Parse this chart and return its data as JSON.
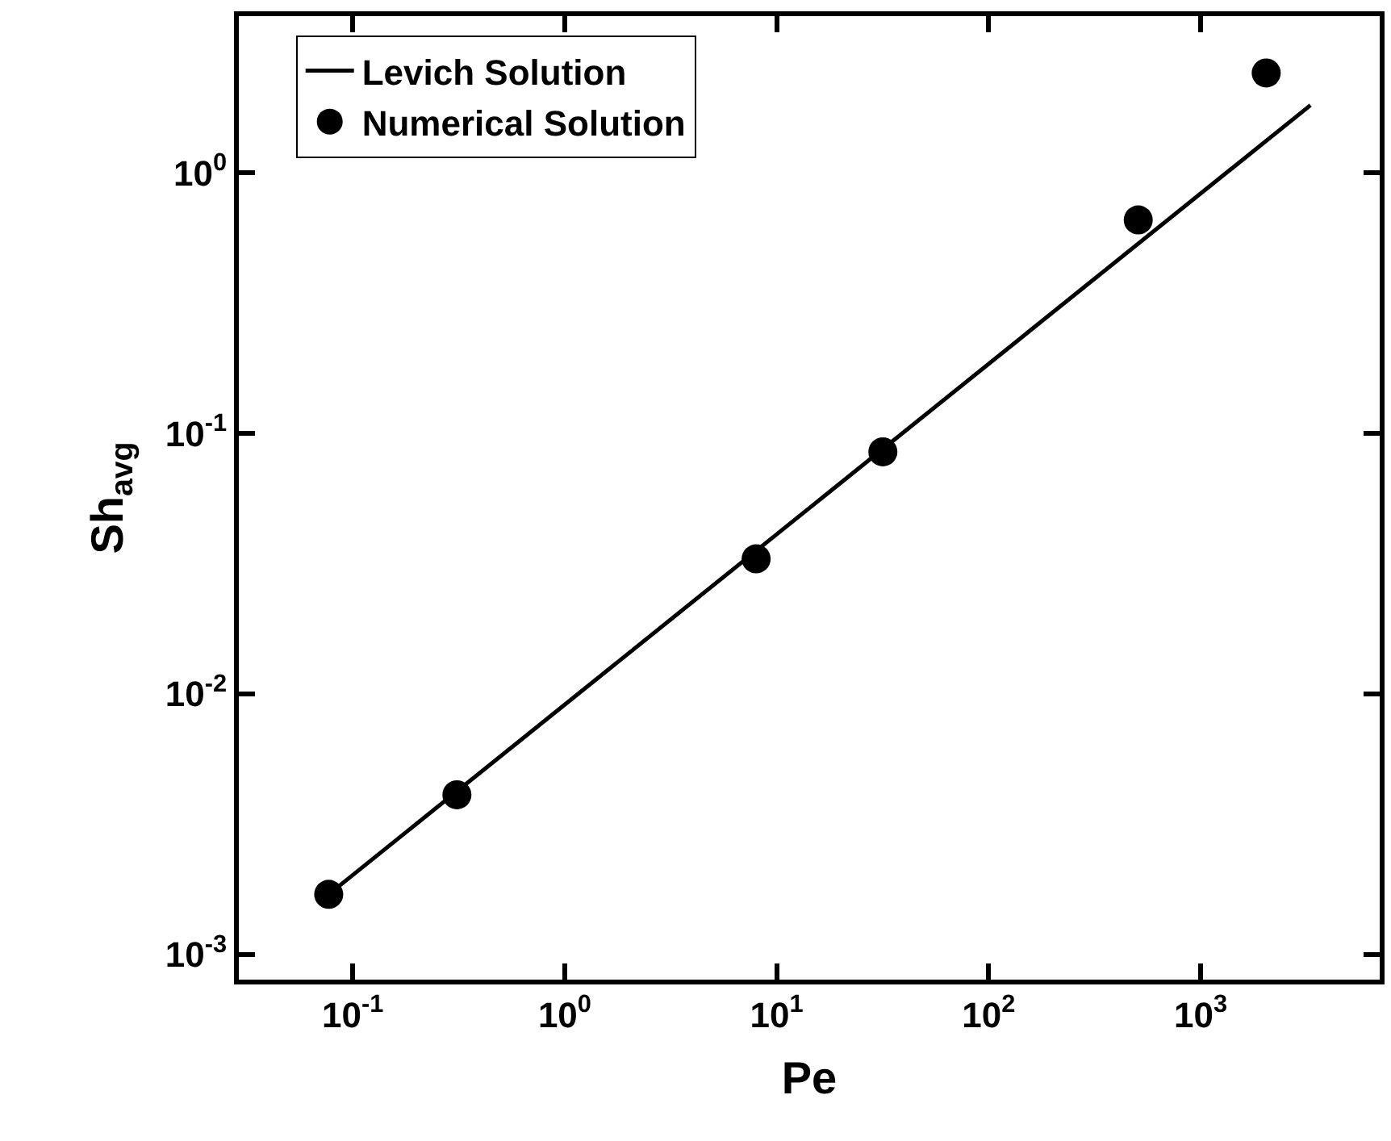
{
  "chart_data": {
    "type": "scatter",
    "xlabel": "Pe",
    "ylabel": "Sh$_{avg}$",
    "log": "xy",
    "grid": false,
    "legend": "top left",
    "xlim": [
      0.029,
      7000
    ],
    "ylim": [
      0.0008,
      4
    ],
    "xticks": [
      {
        "value": 0.1,
        "label": "10$^{-1}$"
      },
      {
        "value": 1,
        "label": "10$^{0}$"
      },
      {
        "value": 10,
        "label": "10$^{1}$"
      },
      {
        "value": 100,
        "label": "10$^{2}$"
      },
      {
        "value": 1000,
        "label": "10$^{3}$"
      }
    ],
    "yticks": [
      {
        "value": 0.001,
        "label": "10$^{-3}$"
      },
      {
        "value": 0.01,
        "label": "10$^{-2}$"
      },
      {
        "value": 0.1,
        "label": "10$^{-1}$"
      },
      {
        "value": 1,
        "label": "10$^{0}$"
      }
    ],
    "series": [
      {
        "name": "Levich Solution",
        "type": "line",
        "color": "#000000",
        "marker": "none",
        "line_style": "solid",
        "x": [
          0.077,
          3300
        ],
        "values": [
          0.0017,
          1.82
        ]
      },
      {
        "name": "Numerical Solution",
        "color": "#000000",
        "marker": "circle",
        "x": [
          0.077,
          0.31,
          8,
          31.7,
          508,
          2040
        ],
        "values": [
          0.0017,
          0.0041,
          0.033,
          0.085,
          0.66,
          2.42
        ]
      }
    ]
  }
}
